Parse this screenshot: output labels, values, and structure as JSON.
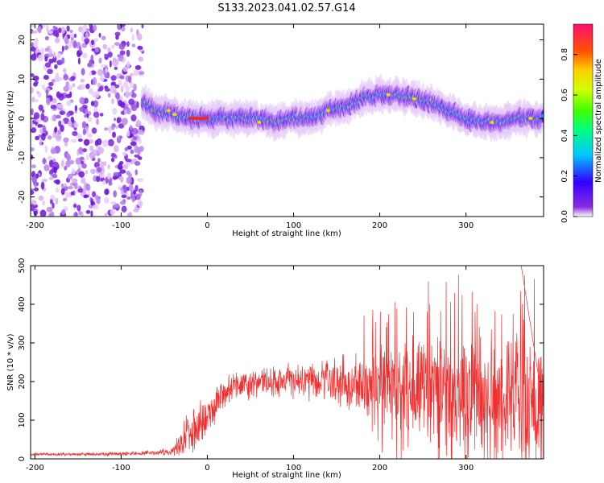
{
  "title": "S133.2023.041.02.57.G14",
  "colors": {
    "snr_line": "#f03030",
    "axis": "#000000",
    "background": "#ffffff"
  },
  "chart_data": [
    {
      "type": "heatmap",
      "title": "S133.2023.041.02.57.G14",
      "xlabel": "Height of straight line (km)",
      "ylabel": "Frequency (Hz)",
      "xlim": [
        -205,
        390
      ],
      "ylim": [
        -25,
        24
      ],
      "xticks": [
        -200,
        -100,
        0,
        100,
        200,
        300
      ],
      "yticks": [
        -20,
        -10,
        0,
        10,
        20
      ],
      "colorbar": {
        "label": "Normalized spectral amplitude",
        "range": [
          0.0,
          0.95
        ],
        "ticks": [
          0.0,
          0.2,
          0.4,
          0.6,
          0.8
        ]
      },
      "noise_region_x": [
        -205,
        -75
      ],
      "ridge": {
        "x": [
          -75,
          -60,
          -40,
          -20,
          0,
          20,
          40,
          60,
          80,
          100,
          120,
          140,
          160,
          180,
          200,
          220,
          240,
          260,
          280,
          300,
          320,
          340,
          360,
          380,
          390
        ],
        "freq": [
          4,
          2,
          1,
          0,
          0,
          0,
          0,
          0,
          -1,
          0,
          0,
          2,
          3,
          5,
          6,
          6,
          5,
          4,
          2,
          0,
          -1,
          -1,
          0,
          0,
          0
        ],
        "peak_amplitude_x": [
          -20,
          0
        ]
      },
      "grid": false
    },
    {
      "type": "line",
      "xlabel": "Height of straight line (km)",
      "ylabel": "SNR (10 * v/v)",
      "xlim": [
        -205,
        390
      ],
      "ylim": [
        0,
        500
      ],
      "xticks": [
        -200,
        -100,
        0,
        100,
        200,
        300
      ],
      "yticks": [
        0,
        100,
        200,
        300,
        400,
        500
      ],
      "envelope": {
        "x": [
          -205,
          -150,
          -100,
          -60,
          -40,
          -30,
          -20,
          -10,
          0,
          10,
          20,
          40,
          60,
          80,
          100,
          120,
          140,
          160,
          180,
          200,
          220,
          240,
          260,
          280,
          300,
          320,
          340,
          360,
          380,
          390
        ],
        "mean": [
          12,
          12,
          13,
          16,
          20,
          45,
          70,
          90,
          110,
          150,
          175,
          190,
          195,
          200,
          205,
          200,
          200,
          200,
          195,
          195,
          195,
          180,
          175,
          170,
          165,
          160,
          155,
          150,
          145,
          140
        ],
        "spread": [
          4,
          4,
          5,
          6,
          10,
          40,
          60,
          60,
          60,
          50,
          40,
          35,
          35,
          40,
          45,
          50,
          55,
          65,
          80,
          100,
          115,
          130,
          140,
          150,
          150,
          150,
          150,
          155,
          150,
          140
        ]
      },
      "peak": {
        "x": 364,
        "y": 500
      },
      "grid": false
    }
  ]
}
